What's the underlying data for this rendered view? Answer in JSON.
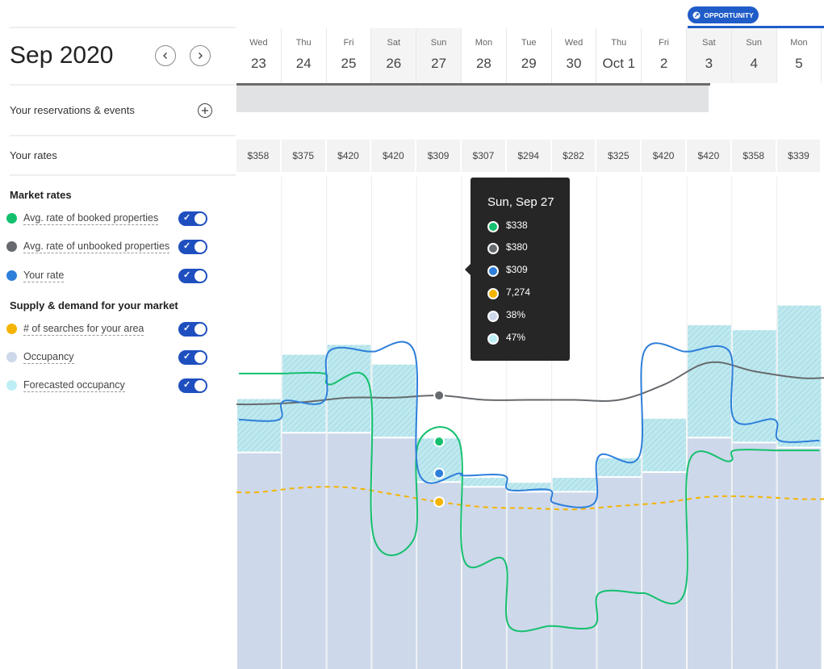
{
  "header": {
    "month": "Sep 2020",
    "prev_icon": "chevron-left-icon",
    "next_icon": "chevron-right-icon",
    "opportunity_badge": "OPPORTUNITY"
  },
  "rows": {
    "reservations_label": "Your reservations & events",
    "rates_label": "Your rates"
  },
  "market_rates": {
    "heading": "Market rates",
    "items": [
      {
        "label": "Avg. rate of booked properties",
        "color": "#14c06e",
        "enabled": true
      },
      {
        "label": "Avg. rate of unbooked properties",
        "color": "#666a6e",
        "enabled": true
      },
      {
        "label": "Your rate",
        "color": "#2d7fdb",
        "enabled": true
      }
    ]
  },
  "supply_demand": {
    "heading": "Supply & demand for your market",
    "items": [
      {
        "label": "# of searches for your area",
        "color": "#f4b400",
        "enabled": true
      },
      {
        "label": "Occupancy",
        "color": "#cdd8ea",
        "enabled": true
      },
      {
        "label": "Forecasted occupancy",
        "color": "#bdeef5",
        "enabled": true
      }
    ]
  },
  "days": [
    {
      "dow": "Wed",
      "day": "23",
      "rate": "$358",
      "weekend": false
    },
    {
      "dow": "Thu",
      "day": "24",
      "rate": "$375",
      "weekend": false
    },
    {
      "dow": "Fri",
      "day": "25",
      "rate": "$420",
      "weekend": false
    },
    {
      "dow": "Sat",
      "day": "26",
      "rate": "$420",
      "weekend": true
    },
    {
      "dow": "Sun",
      "day": "27",
      "rate": "$309",
      "weekend": true
    },
    {
      "dow": "Mon",
      "day": "28",
      "rate": "$307",
      "weekend": false
    },
    {
      "dow": "Tue",
      "day": "29",
      "rate": "$294",
      "weekend": false
    },
    {
      "dow": "Wed",
      "day": "30",
      "rate": "$282",
      "weekend": false
    },
    {
      "dow": "Thu",
      "day": "Oct 1",
      "rate": "$325",
      "weekend": false
    },
    {
      "dow": "Fri",
      "day": "2",
      "rate": "$420",
      "weekend": false
    },
    {
      "dow": "Sat",
      "day": "3",
      "rate": "$420",
      "weekend": true
    },
    {
      "dow": "Sun",
      "day": "4",
      "rate": "$358",
      "weekend": true
    },
    {
      "dow": "Mon",
      "day": "5",
      "rate": "$339",
      "weekend": false
    }
  ],
  "tooltip": {
    "title": "Sun, Sep 27",
    "rows": [
      {
        "value": "$338",
        "color": "#14c06e"
      },
      {
        "value": "$380",
        "color": "#666a6e"
      },
      {
        "value": "$309",
        "color": "#2d7fdb"
      },
      {
        "value": "7,274",
        "color": "#f4b400"
      },
      {
        "value": "38%",
        "color": "#cdd8ea"
      },
      {
        "value": "47%",
        "color": "#bdeef5"
      }
    ]
  },
  "chart_data": {
    "type": "line",
    "categories": [
      "Sep 23",
      "Sep 24",
      "Sep 25",
      "Sep 26",
      "Sep 27",
      "Sep 28",
      "Sep 29",
      "Sep 30",
      "Oct 1",
      "Oct 2",
      "Oct 3",
      "Oct 4",
      "Oct 5"
    ],
    "series": [
      {
        "name": "Avg. rate of booked properties",
        "color": "#14c06e",
        "values": [
          400,
          400,
          390,
          250,
          338,
          230,
          170,
          170,
          200,
          200,
          320,
          330,
          330
        ]
      },
      {
        "name": "Avg. rate of unbooked properties",
        "color": "#666a6e",
        "values": [
          372,
          374,
          378,
          378,
          380,
          376,
          376,
          376,
          376,
          390,
          410,
          402,
          396
        ]
      },
      {
        "name": "Your rate",
        "color": "#2d7fdb",
        "values": [
          358,
          375,
          420,
          420,
          309,
          307,
          294,
          282,
          325,
          420,
          420,
          358,
          339
        ]
      },
      {
        "name": "# of searches for your area",
        "color": "#f4b400",
        "values": [
          7700,
          7900,
          7900,
          7600,
          7274,
          7050,
          7000,
          6950,
          7100,
          7250,
          7500,
          7500,
          7400
        ]
      },
      {
        "name": "Occupancy",
        "color": "#cdd8ea",
        "unit": "%",
        "values": [
          44,
          48,
          48,
          47,
          38,
          37,
          36,
          36,
          39,
          40,
          47,
          46,
          45
        ]
      },
      {
        "name": "Forecasted occupancy",
        "color": "#bdeef5",
        "unit": "%",
        "values": [
          55,
          64,
          66,
          62,
          47,
          39,
          38,
          39,
          43,
          51,
          70,
          69,
          74
        ]
      }
    ],
    "ylim_rate": [
      150,
      430
    ],
    "ylim_occupancy": [
      0,
      100
    ],
    "ylim_searches": [
      0,
      13000
    ],
    "grid": true
  }
}
